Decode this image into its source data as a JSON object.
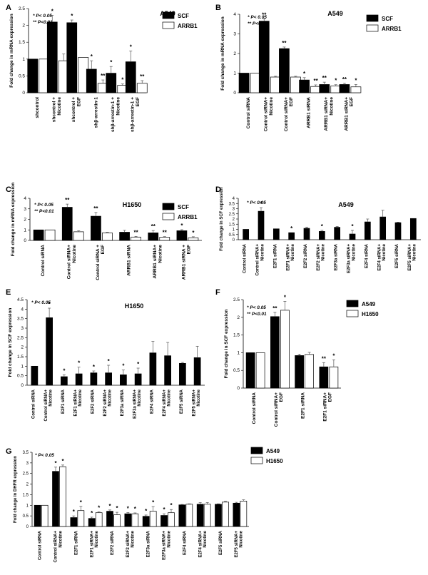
{
  "figure": {
    "style": {
      "bar_black": "#000000",
      "bar_white": "#ffffff",
      "axis": "#000000"
    }
  },
  "chart_data": [
    {
      "panel": "A",
      "type": "bar",
      "title": "A549",
      "ylabel": "Fold change in mRNA expression",
      "ylim": [
        0,
        2.5
      ],
      "yticks": [
        0,
        0.5,
        1,
        1.5,
        2,
        2.5
      ],
      "legend_position": "top-right",
      "annotations": [
        "* P< 0.05",
        "** P<0.01"
      ],
      "categories": [
        "shcontrol",
        "shcontrol + Nicotine",
        "shcontrol + EGF",
        "shβ-arrestin-1",
        "shβ-arrestin-1 + Nicotine",
        "shβ-arrestin-1 + EGF"
      ],
      "series": [
        {
          "name": "SCF",
          "color": "#000000",
          "values": [
            1.0,
            2.1,
            2.08,
            0.7,
            0.58,
            0.92
          ],
          "errors": [
            0,
            0.2,
            0.08,
            0.25,
            0.2,
            0.32
          ],
          "sig": [
            "",
            "*",
            "*",
            "*",
            "*",
            "*"
          ]
        },
        {
          "name": "ARRB1",
          "color": "#ffffff",
          "values": [
            1.0,
            0.95,
            1.05,
            0.28,
            0.22,
            0.28
          ],
          "errors": [
            0,
            0.2,
            0,
            0.1,
            0.04,
            0.08
          ],
          "sig": [
            "",
            "",
            "",
            "**",
            "*",
            "**"
          ]
        }
      ]
    },
    {
      "panel": "B",
      "type": "bar",
      "title": "A549",
      "ylabel": "Fold change in mRNA expression",
      "ylim": [
        0,
        4
      ],
      "yticks": [
        0,
        1,
        2,
        3,
        4
      ],
      "legend_position": "top-right",
      "annotations": [
        "* P< 0.05",
        "** P<0.01"
      ],
      "categories": [
        "Control siRNA",
        "Control siRNA+ Nicotine",
        "Control siRNA+ EGF",
        "ARRB1 siRNA",
        "ARRB1 siRNA+ Nicotine",
        "ARRB1 siRNA+ EGF"
      ],
      "series": [
        {
          "name": "SCF",
          "color": "#000000",
          "values": [
            1.0,
            3.65,
            2.25,
            0.65,
            0.42,
            0.42
          ],
          "errors": [
            0,
            0.12,
            0.08,
            0.12,
            0.12,
            0.06
          ],
          "sig": [
            "",
            "**",
            "**",
            "*",
            "**",
            "**"
          ]
        },
        {
          "name": "ARRB1",
          "color": "#ffffff",
          "values": [
            1.0,
            0.8,
            0.8,
            0.32,
            0.35,
            0.3
          ],
          "errors": [
            0,
            0.04,
            0.04,
            0.08,
            0.06,
            0.12
          ],
          "sig": [
            "",
            "",
            "",
            "**",
            "*",
            "*"
          ]
        }
      ]
    },
    {
      "panel": "C",
      "type": "bar",
      "title": "H1650",
      "ylabel": "Fold change in mRNA expression",
      "ylim": [
        0,
        4
      ],
      "yticks": [
        0,
        1,
        2,
        3,
        4
      ],
      "legend_position": "top-right",
      "annotations": [
        "* P< 0.05",
        "** P<0.01"
      ],
      "categories": [
        "Control siRNA",
        "Control siRNA+ Nicotine",
        "Control siRNA + EGF",
        "ARRB1 siRNA",
        "ARRB1 siRNA+ Nicotine",
        "ARRB1 siRNA + EGF"
      ],
      "series": [
        {
          "name": "SCF",
          "color": "#000000",
          "values": [
            1.0,
            3.15,
            2.3,
            0.78,
            0.72,
            0.92
          ],
          "errors": [
            0,
            0.3,
            0.35,
            0.18,
            0.22,
            0.1
          ],
          "sig": [
            "",
            "**",
            "**",
            "",
            "**",
            "*"
          ]
        },
        {
          "name": "ARRB1",
          "color": "#ffffff",
          "values": [
            1.0,
            0.82,
            0.72,
            0.32,
            0.3,
            0.25
          ],
          "errors": [
            0,
            0.1,
            0.05,
            0.06,
            0.06,
            0.1
          ],
          "sig": [
            "",
            "",
            "",
            "**",
            "**",
            "*"
          ]
        }
      ]
    },
    {
      "panel": "D",
      "type": "bar",
      "title": "A549",
      "ylabel": "Fold change in SCF expression",
      "ylim": [
        0,
        4
      ],
      "yticks": [
        0,
        0.5,
        1,
        1.5,
        2,
        2.5,
        3,
        3.5,
        4
      ],
      "annotations": [
        "* P< 0.05"
      ],
      "categories": [
        "Control siRNA",
        "Control siRNA+ Nicotine",
        "E2F1 siRNA",
        "E2F1 siRNA+ Nicotine",
        "E2F2 siRNA",
        "E2F2 siRNA+ Nicotine",
        "E2F3a siRNA",
        "E2F3a siRNA+ Nicotine",
        "E2F4 siRNA",
        "E2F4 siRNA+ Nicotine",
        "E2F5 siRNA",
        "E2F5 siRNA+ Nicotine"
      ],
      "series": [
        {
          "name": "",
          "color": "#000000",
          "values": [
            1.0,
            2.75,
            1.05,
            0.68,
            1.1,
            0.8,
            1.2,
            0.55,
            1.72,
            2.2,
            1.65,
            2.05
          ],
          "errors": [
            0,
            0.35,
            0,
            0,
            0.12,
            0.1,
            0.08,
            0.35,
            0.28,
            0.65,
            0.05,
            0
          ],
          "sig": [
            "",
            "*",
            "",
            "*",
            "",
            "*",
            "",
            "*",
            "",
            "",
            "",
            ""
          ]
        }
      ]
    },
    {
      "panel": "E",
      "type": "bar",
      "title": "H1650",
      "ylabel": "Fold change in SCF expression",
      "ylim": [
        0,
        4.5
      ],
      "yticks": [
        0,
        0.5,
        1,
        1.5,
        2,
        2.5,
        3,
        3.5,
        4,
        4.5
      ],
      "annotations": [
        "* P< 0.05"
      ],
      "categories": [
        "Control siRNA",
        "Control siRNA+ Nicotine",
        "E2F1 siRNA",
        "E2F1 siRNA+ Nicotine",
        "E2F2 siRNA",
        "E2F2 siRNA+ Nicotine",
        "E2F3a siRNA",
        "E2F3a siRNA+ Nicotine",
        "E2F4 siRNA",
        "E2F4 siRNA+ Nicotine",
        "E2F5 siRNA",
        "E2F5 siRNA+ Nicotine"
      ],
      "series": [
        {
          "name": "",
          "color": "#000000",
          "values": [
            1.0,
            3.55,
            0.45,
            0.6,
            0.65,
            0.65,
            0.55,
            0.6,
            1.7,
            1.55,
            1.15,
            1.45
          ],
          "errors": [
            0,
            0.5,
            0.1,
            0.35,
            0.1,
            0.4,
            0.25,
            0.3,
            0.6,
            0.7,
            0.05,
            0.6
          ],
          "sig": [
            "",
            "*",
            "*",
            "*",
            "*",
            "*",
            "*",
            "*",
            "",
            "",
            "",
            ""
          ]
        }
      ]
    },
    {
      "panel": "F",
      "type": "bar",
      "title": "",
      "ylabel": "Fold change in SCF expression",
      "ylim": [
        0,
        2.5
      ],
      "yticks": [
        0,
        0.5,
        1,
        1.5,
        2,
        2.5
      ],
      "legend_position": "top-right",
      "annotations": [
        "* P< 0.05",
        "** P<0.01"
      ],
      "categories": [
        "Control siRNA",
        "Control siRNA+ EGF",
        "E2F1 siRNA",
        "E2F1 siRNA+ EGF"
      ],
      "series": [
        {
          "name": "A549",
          "color": "#000000",
          "values": [
            1.0,
            2.02,
            0.92,
            0.6
          ],
          "errors": [
            0,
            0.12,
            0.04,
            0.12
          ],
          "sig": [
            "",
            "**",
            "",
            "**"
          ]
        },
        {
          "name": "H1650",
          "color": "#ffffff",
          "values": [
            1.0,
            2.2,
            0.95,
            0.6
          ],
          "errors": [
            0,
            0.25,
            0.06,
            0.2
          ],
          "sig": [
            "",
            "*",
            "",
            "*"
          ]
        }
      ]
    },
    {
      "panel": "G",
      "type": "bar",
      "title": "",
      "ylabel": "Fold change in DHFR expression",
      "ylim": [
        0,
        3.5
      ],
      "yticks": [
        0,
        0.5,
        1,
        1.5,
        2,
        2.5,
        3,
        3.5
      ],
      "legend_position": "top-right",
      "annotations": [
        "* P< 0.05"
      ],
      "categories": [
        "Control siRNA",
        "Control siRNA+ Nicotine",
        "E2F1 siRNA",
        "E2F1 siRNA+ Nicotine",
        "E2F2 siRNA",
        "E2F2 siRNA+ Nicotine",
        "E2F3a siRNA",
        "E2F3a siRNA+ Nicotine",
        "E2F4 siRNA",
        "E2F4 siRNA+ Nicotine",
        "E2F5 siRNA",
        "E2F5 siRNA+ Nicotine"
      ],
      "series": [
        {
          "name": "A549",
          "color": "#000000",
          "values": [
            1.0,
            2.6,
            0.42,
            0.38,
            0.72,
            0.6,
            0.48,
            0.52,
            1.02,
            1.05,
            1.05,
            1.1
          ],
          "errors": [
            0,
            0.2,
            0.08,
            0.06,
            0.06,
            0.06,
            0.06,
            0.08,
            0.02,
            0.08,
            0.02,
            0.04
          ],
          "sig": [
            "",
            "*",
            "*",
            "*",
            "*",
            "*",
            "*",
            "*",
            "",
            "",
            "",
            ""
          ]
        },
        {
          "name": "H1650",
          "color": "#ffffff",
          "values": [
            1.0,
            2.82,
            0.75,
            0.65,
            0.55,
            0.6,
            0.72,
            0.65,
            1.05,
            1.05,
            1.15,
            1.2
          ],
          "errors": [
            0,
            0.08,
            0.2,
            0.04,
            0.12,
            0.04,
            0.22,
            0.15,
            0.02,
            0.08,
            0.04,
            0.06
          ],
          "sig": [
            "",
            "*",
            "*",
            "*",
            "*",
            "*",
            "*",
            "*",
            "",
            "",
            "",
            ""
          ]
        }
      ]
    }
  ]
}
